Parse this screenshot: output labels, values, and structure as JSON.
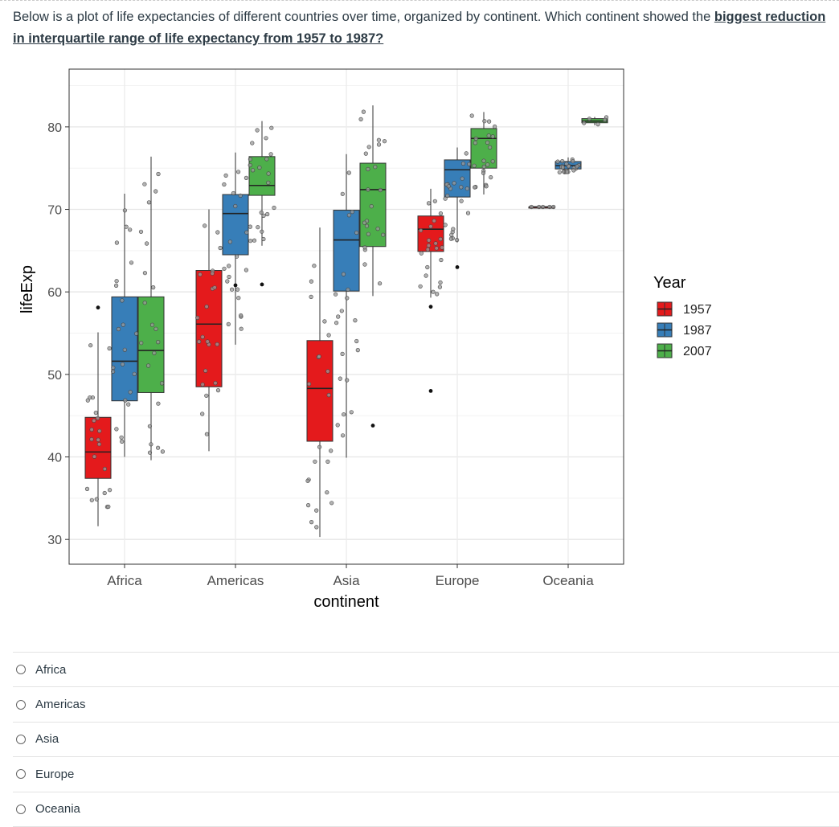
{
  "question": {
    "text_plain": "Below is a plot of life expectancies of different countries over time, organized by continent. Which continent showed the ",
    "text_emphasis": "biggest reduction in interquartile range of life expectancy from 1957 to 1987?"
  },
  "options": [
    "Africa",
    "Americas",
    "Asia",
    "Europe",
    "Oceania"
  ],
  "colors": {
    "y1957": "#E41A1C",
    "y1987": "#377EB8",
    "y2007": "#4DAF4A"
  },
  "chart_data": {
    "type": "boxplot",
    "xlabel": "continent",
    "ylabel": "lifeExp",
    "ylim": [
      27,
      87
    ],
    "yticks": [
      30,
      40,
      50,
      60,
      70,
      80
    ],
    "categories": [
      "Africa",
      "Americas",
      "Asia",
      "Europe",
      "Oceania"
    ],
    "legend": {
      "title": "Year",
      "position": "right",
      "entries": [
        "1957",
        "1987",
        "2007"
      ]
    },
    "grid": true,
    "series": [
      {
        "name": "1957",
        "boxes": [
          {
            "min": 31.6,
            "q1": 37.4,
            "median": 40.6,
            "q3": 44.8,
            "max": 55.1,
            "outliers": [
              58.1
            ]
          },
          {
            "min": 40.7,
            "q1": 48.5,
            "median": 56.1,
            "q3": 62.6,
            "max": 70.0,
            "outliers": []
          },
          {
            "min": 30.3,
            "q1": 41.9,
            "median": 48.3,
            "q3": 54.1,
            "max": 67.8,
            "outliers": []
          },
          {
            "min": 59.3,
            "q1": 64.9,
            "median": 67.6,
            "q3": 69.2,
            "max": 72.5,
            "outliers": [
              58.2,
              48.0
            ]
          },
          {
            "min": 70.3,
            "q1": 70.3,
            "median": 70.3,
            "q3": 70.3,
            "max": 70.3,
            "outliers": []
          }
        ]
      },
      {
        "name": "1987",
        "boxes": [
          {
            "min": 40.0,
            "q1": 46.8,
            "median": 51.6,
            "q3": 59.4,
            "max": 71.9,
            "outliers": []
          },
          {
            "min": 53.6,
            "q1": 64.5,
            "median": 69.5,
            "q3": 71.8,
            "max": 76.9,
            "outliers": [
              60.8
            ]
          },
          {
            "min": 39.9,
            "q1": 60.1,
            "median": 66.3,
            "q3": 69.9,
            "max": 76.7,
            "outliers": []
          },
          {
            "min": 66.0,
            "q1": 71.5,
            "median": 74.8,
            "q3": 76.0,
            "max": 77.5,
            "outliers": [
              63.0
            ]
          },
          {
            "min": 74.3,
            "q1": 74.9,
            "median": 75.3,
            "q3": 75.8,
            "max": 76.3,
            "outliers": []
          }
        ]
      },
      {
        "name": "2007",
        "boxes": [
          {
            "min": 39.6,
            "q1": 47.8,
            "median": 52.9,
            "q3": 59.4,
            "max": 76.4,
            "outliers": []
          },
          {
            "min": 65.6,
            "q1": 71.7,
            "median": 72.9,
            "q3": 76.4,
            "max": 80.7,
            "outliers": [
              60.9
            ]
          },
          {
            "min": 59.5,
            "q1": 65.5,
            "median": 72.4,
            "q3": 75.6,
            "max": 82.6,
            "outliers": [
              43.8
            ]
          },
          {
            "min": 71.8,
            "q1": 75.0,
            "median": 78.6,
            "q3": 79.8,
            "max": 81.8,
            "outliers": []
          },
          {
            "min": 80.2,
            "q1": 80.5,
            "median": 80.7,
            "q3": 81.0,
            "max": 81.2,
            "outliers": []
          }
        ]
      }
    ]
  }
}
